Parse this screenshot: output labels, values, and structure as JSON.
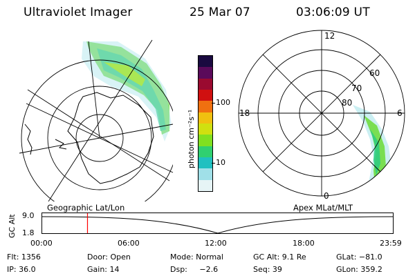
{
  "header": {
    "instrument": "Ultraviolet Imager",
    "date": "25 Mar 07",
    "time": "03:06:09 UT"
  },
  "left_map": {
    "caption": "Geographic Lat/Lon"
  },
  "right_map": {
    "caption": "Apex  MLat/MLT",
    "mlt_labels": {
      "top": "12",
      "left": "18",
      "right": "6",
      "bottom": "0"
    },
    "lat_labels": [
      "60",
      "70",
      "80"
    ]
  },
  "colorbar": {
    "unit_label": "photon cm⁻²s⁻¹",
    "ticks": [
      "100",
      "10"
    ],
    "colors": [
      "#1a0a40",
      "#5a0a5a",
      "#9a0a30",
      "#d01010",
      "#f07010",
      "#f0c010",
      "#d0e010",
      "#80e020",
      "#30d070",
      "#20c0c0",
      "#a0e0e8",
      "#e6f4f6"
    ]
  },
  "altitude_strip": {
    "axis_label": "GC Alt",
    "y_ticks": [
      "9.0",
      "1.8"
    ],
    "x_ticks": [
      "00:00",
      "06:00",
      "12:00",
      "18:00",
      "23:59"
    ],
    "current_time_hours": 3.1,
    "marker_color": "#ff0000"
  },
  "status": {
    "row1": {
      "flt": "Flt: 1356",
      "door": "Door: Open",
      "mode": "Mode: Normal",
      "gcalt": "GC Alt: 9.1 Re",
      "glat": "GLat: −81.0"
    },
    "row2": {
      "ip": "IP: 36.0",
      "gain": "Gain: 14",
      "dsp": "Dsp:     −2.6",
      "seq": "Seq: 39",
      "glon": "GLon: 359.2"
    }
  }
}
